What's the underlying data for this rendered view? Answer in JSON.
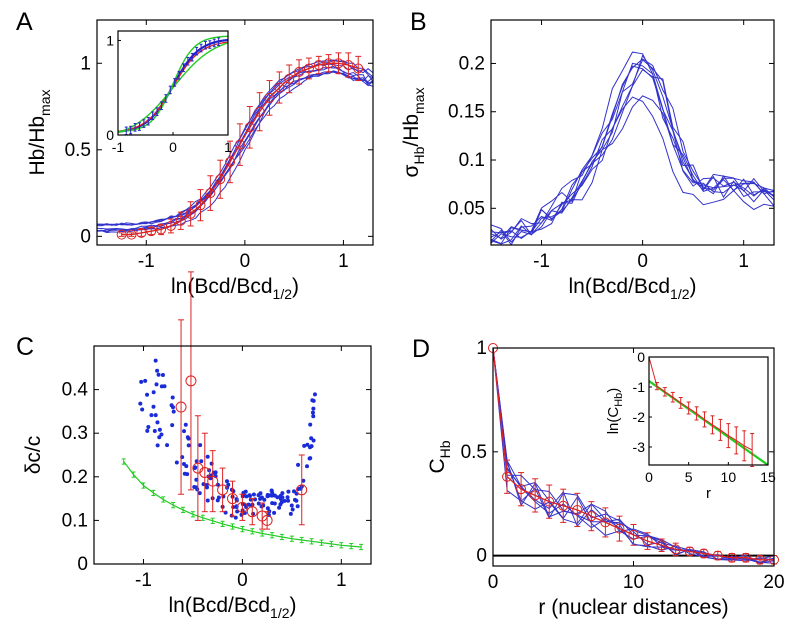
{
  "chart_data": [
    {
      "panel": "A",
      "type": "line",
      "ylabel": "Hb/Hb",
      "ylabel_sub": "max",
      "xlabel": "ln(Bcd/Bcd",
      "xlabel_sub": "1/2",
      "xlabel_suffix": ")",
      "xlim": [
        -1.5,
        1.3
      ],
      "ylim": [
        -0.05,
        1.25
      ],
      "xticks": [
        -1,
        0,
        1
      ],
      "yticks": [
        0,
        0.5,
        1
      ],
      "series_color": "#3333cc",
      "mean_color": "#dd2222",
      "mean": {
        "x": [
          -1.25,
          -1.15,
          -1.05,
          -0.95,
          -0.85,
          -0.75,
          -0.65,
          -0.55,
          -0.45,
          -0.35,
          -0.25,
          -0.15,
          -0.05,
          0.05,
          0.15,
          0.25,
          0.35,
          0.45,
          0.55,
          0.65,
          0.75,
          0.85,
          0.95,
          1.05,
          1.15
        ],
        "y": [
          0.01,
          0.01,
          0.02,
          0.03,
          0.04,
          0.06,
          0.09,
          0.13,
          0.18,
          0.25,
          0.33,
          0.43,
          0.53,
          0.63,
          0.72,
          0.8,
          0.86,
          0.91,
          0.95,
          0.97,
          0.99,
          1.0,
          1.0,
          0.99,
          0.97
        ],
        "err": [
          0.01,
          0.01,
          0.02,
          0.02,
          0.03,
          0.04,
          0.05,
          0.07,
          0.09,
          0.1,
          0.11,
          0.12,
          0.12,
          0.12,
          0.11,
          0.1,
          0.09,
          0.08,
          0.07,
          0.06,
          0.05,
          0.05,
          0.06,
          0.07,
          0.07
        ]
      },
      "inset": {
        "xlim": [
          -1,
          1
        ],
        "ylim": [
          0,
          1.1
        ],
        "xticks": [
          -1,
          0,
          1
        ],
        "yticks": [
          0,
          1
        ],
        "curves": [
          {
            "name": "data",
            "color": "#2222cc"
          },
          {
            "name": "fit-red",
            "color": "#dd2222"
          },
          {
            "name": "fit-green-steep",
            "color": "#22cc22"
          },
          {
            "name": "fit-green-shallow",
            "color": "#22cc22"
          }
        ]
      }
    },
    {
      "panel": "B",
      "type": "line",
      "ylabel": "σ",
      "ylabel_sub1": "Hb",
      "ylabel_mid": "/Hb",
      "ylabel_sub2": "max",
      "xlabel": "ln(Bcd/Bcd",
      "xlabel_sub": "1/2",
      "xlabel_suffix": ")",
      "xlim": [
        -1.5,
        1.3
      ],
      "ylim": [
        0.012,
        0.245
      ],
      "xticks": [
        -1,
        0,
        1
      ],
      "yticks": [
        0.05,
        0.1,
        0.15,
        0.2
      ],
      "series_color": "#3333cc",
      "profile": {
        "x": [
          -1.5,
          -1.3,
          -1.1,
          -0.9,
          -0.7,
          -0.5,
          -0.3,
          -0.15,
          0.0,
          0.15,
          0.3,
          0.45,
          0.6,
          0.8,
          1.0,
          1.15,
          1.3
        ],
        "y": [
          0.02,
          0.023,
          0.03,
          0.042,
          0.06,
          0.09,
          0.13,
          0.17,
          0.19,
          0.17,
          0.12,
          0.085,
          0.07,
          0.068,
          0.07,
          0.065,
          0.055
        ]
      },
      "num_traces": 9
    },
    {
      "panel": "C",
      "type": "scatter",
      "ylabel": "δc/c",
      "xlabel": "ln(Bcd/Bcd",
      "xlabel_sub": "1/2",
      "xlabel_suffix": ")",
      "xlim": [
        -1.5,
        1.3
      ],
      "ylim": [
        0,
        0.5
      ],
      "xticks": [
        -1,
        0,
        1
      ],
      "yticks": [
        0,
        0.1,
        0.2,
        0.3,
        0.4
      ],
      "green_color": "#22cc22",
      "green": {
        "x": [
          -1.2,
          -1.1,
          -1.0,
          -0.9,
          -0.8,
          -0.7,
          -0.6,
          -0.5,
          -0.4,
          -0.3,
          -0.2,
          -0.1,
          0.0,
          0.1,
          0.2,
          0.3,
          0.4,
          0.5,
          0.6,
          0.7,
          0.8,
          0.9,
          1.0,
          1.1,
          1.2
        ],
        "y": [
          0.235,
          0.205,
          0.18,
          0.163,
          0.148,
          0.135,
          0.124,
          0.114,
          0.106,
          0.099,
          0.092,
          0.086,
          0.08,
          0.075,
          0.07,
          0.066,
          0.062,
          0.058,
          0.055,
          0.052,
          0.049,
          0.046,
          0.043,
          0.041,
          0.039
        ]
      },
      "red_circles": {
        "x": [
          -0.62,
          -0.52,
          -0.45,
          -0.38,
          -0.3,
          -0.2,
          -0.1,
          0.0,
          0.1,
          0.2,
          0.25,
          0.6
        ],
        "y": [
          0.36,
          0.42,
          0.22,
          0.21,
          0.19,
          0.17,
          0.15,
          0.13,
          0.12,
          0.11,
          0.1,
          0.17
        ],
        "err": [
          0.2,
          0.25,
          0.12,
          0.09,
          0.07,
          0.05,
          0.04,
          0.03,
          0.03,
          0.03,
          0.02,
          0.08
        ]
      }
    },
    {
      "panel": "D",
      "type": "line",
      "ylabel": "C",
      "ylabel_sub": "Hb",
      "xlabel": "r (nuclear distances)",
      "xlim": [
        0,
        20
      ],
      "ylim": [
        -0.05,
        1.0
      ],
      "xticks": [
        0,
        10,
        20
      ],
      "yticks": [
        0,
        0.5,
        1
      ],
      "mean": {
        "x": [
          0,
          1,
          2,
          3,
          4,
          5,
          6,
          7,
          8,
          9,
          10,
          11,
          12,
          13,
          14,
          15,
          16,
          17,
          18,
          19,
          20
        ],
        "y": [
          1.0,
          0.38,
          0.32,
          0.29,
          0.26,
          0.24,
          0.22,
          0.19,
          0.16,
          0.13,
          0.1,
          0.07,
          0.05,
          0.03,
          0.02,
          0.01,
          0.0,
          -0.01,
          -0.01,
          -0.02,
          -0.02
        ],
        "err": [
          0.0,
          0.08,
          0.08,
          0.08,
          0.08,
          0.08,
          0.08,
          0.07,
          0.07,
          0.06,
          0.05,
          0.04,
          0.03,
          0.03,
          0.02,
          0.02,
          0.02,
          0.02,
          0.02,
          0.02,
          0.02
        ]
      },
      "inset": {
        "xlabel": "r",
        "ylabel": "ln(C",
        "ylabel_sub": "Hb",
        "ylabel_suffix": ")",
        "xlim": [
          0,
          15
        ],
        "ylim": [
          -3.6,
          0.0
        ],
        "xticks": [
          0,
          5,
          10,
          15
        ],
        "yticks": [
          0,
          -1,
          -2,
          -3
        ],
        "fit": {
          "x0": 0,
          "y0": -0.8,
          "x1": 15,
          "y1": -3.6
        },
        "points": {
          "x": [
            1,
            2,
            3,
            4,
            5,
            6,
            7,
            8,
            9,
            10,
            11,
            12,
            13
          ],
          "y": [
            -0.97,
            -1.16,
            -1.34,
            -1.53,
            -1.7,
            -1.88,
            -2.08,
            -2.26,
            -2.43,
            -2.62,
            -2.78,
            -2.96,
            -3.1
          ],
          "err": [
            0.12,
            0.14,
            0.16,
            0.18,
            0.2,
            0.22,
            0.25,
            0.3,
            0.35,
            0.4,
            0.45,
            0.5,
            0.55
          ]
        }
      }
    }
  ]
}
